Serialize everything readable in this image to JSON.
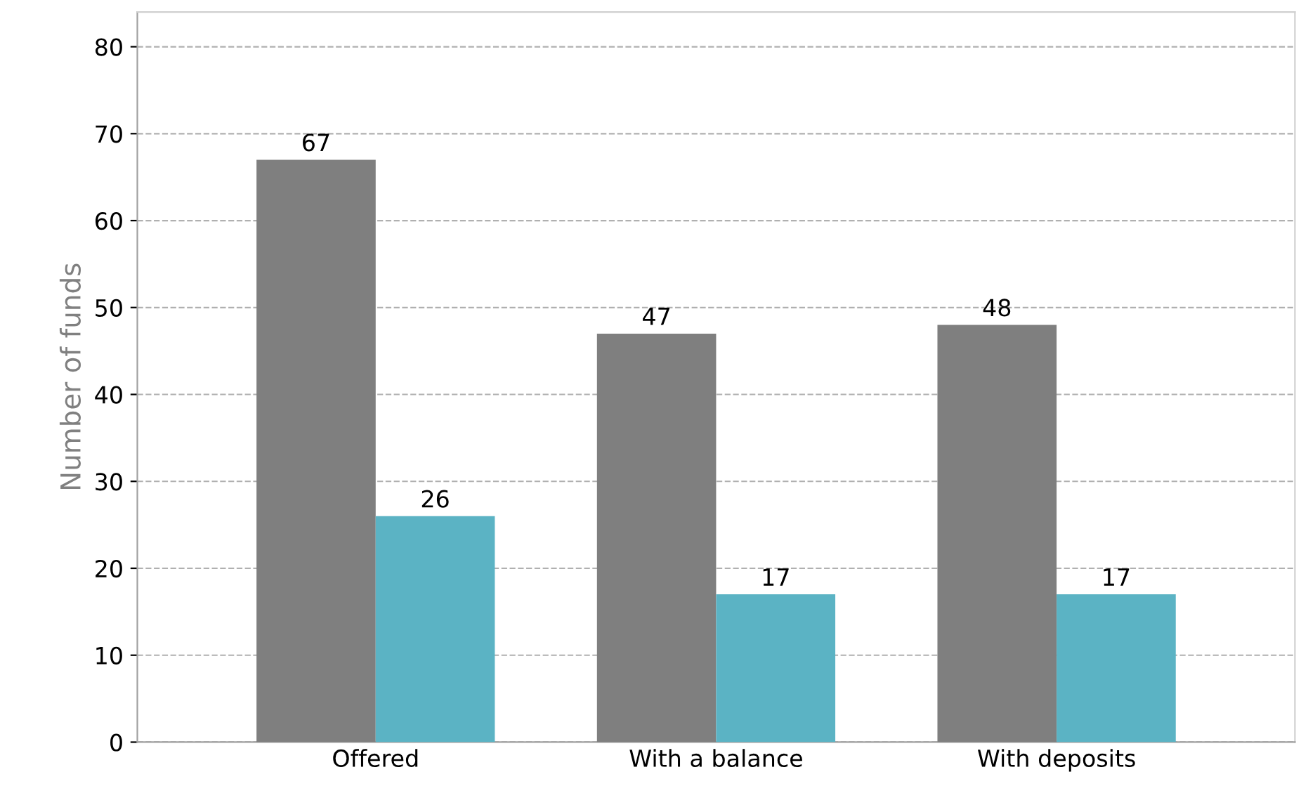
{
  "chart_data": {
    "type": "bar",
    "ylabel": "Number of funds",
    "categories": [
      "Offered",
      "With a balance",
      "With deposits"
    ],
    "series": [
      {
        "color": "#7f7f7f",
        "values": [
          67,
          47,
          48
        ]
      },
      {
        "color": "#5bb3c4",
        "values": [
          26,
          17,
          17
        ]
      }
    ],
    "ylim": [
      0,
      84
    ],
    "yticks": [
      0,
      10,
      20,
      30,
      40,
      50,
      60,
      70,
      80
    ],
    "grid": "y",
    "data_labels": true,
    "legend": false
  }
}
